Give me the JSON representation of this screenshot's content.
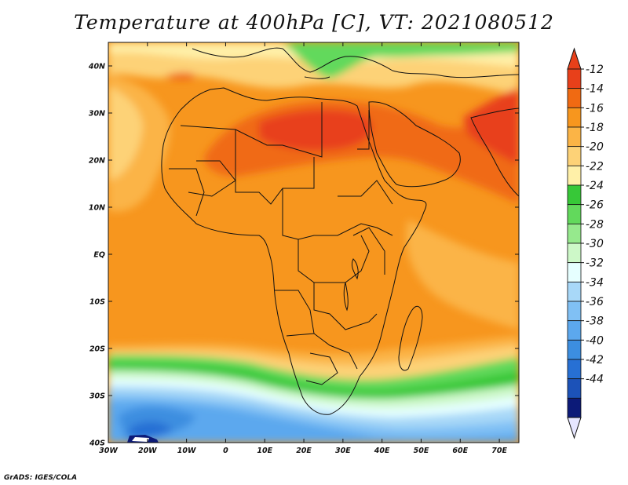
{
  "title": "Temperature at 400hPa [C], VT: 2021080512",
  "credit": "GrADS: IGES/COLA",
  "map": {
    "lon_range": [
      -30,
      75
    ],
    "lat_range": [
      -40,
      45
    ],
    "lon_ticks": [
      {
        "value": -30,
        "label": "30W"
      },
      {
        "value": -20,
        "label": "20W"
      },
      {
        "value": -10,
        "label": "10W"
      },
      {
        "value": 0,
        "label": "0"
      },
      {
        "value": 10,
        "label": "10E"
      },
      {
        "value": 20,
        "label": "20E"
      },
      {
        "value": 30,
        "label": "30E"
      },
      {
        "value": 40,
        "label": "40E"
      },
      {
        "value": 50,
        "label": "50E"
      },
      {
        "value": 60,
        "label": "60E"
      },
      {
        "value": 70,
        "label": "70E"
      }
    ],
    "lat_ticks": [
      {
        "value": 40,
        "label": "40N"
      },
      {
        "value": 30,
        "label": "30N"
      },
      {
        "value": 20,
        "label": "20N"
      },
      {
        "value": 10,
        "label": "10N"
      },
      {
        "value": 0,
        "label": "EQ"
      },
      {
        "value": -10,
        "label": "10S"
      },
      {
        "value": -20,
        "label": "20S"
      },
      {
        "value": -30,
        "label": "30S"
      },
      {
        "value": -40,
        "label": "40S"
      }
    ]
  },
  "colorbar": {
    "labels": [
      "-12",
      "-14",
      "-16",
      "-18",
      "-20",
      "-22",
      "-24",
      "-26",
      "-28",
      "-30",
      "-32",
      "-34",
      "-36",
      "-38",
      "-40",
      "-42",
      "-44"
    ],
    "colors": [
      "#e8401a",
      "#f06a12",
      "#f7961e",
      "#fbb446",
      "#fdd277",
      "#fff0a8",
      "#37c838",
      "#62d95c",
      "#96e98d",
      "#cdf8c8",
      "#e6ffff",
      "#a8d8f8",
      "#80c0f4",
      "#5ca8ee",
      "#3c8ee0",
      "#2770d4",
      "#1c52b8",
      "#1c3a9c"
    ],
    "top_arrow_color": "#e8401a",
    "bottom_arrow_color": "#e6e6ff",
    "bottom_color": "#0c1a78"
  }
}
